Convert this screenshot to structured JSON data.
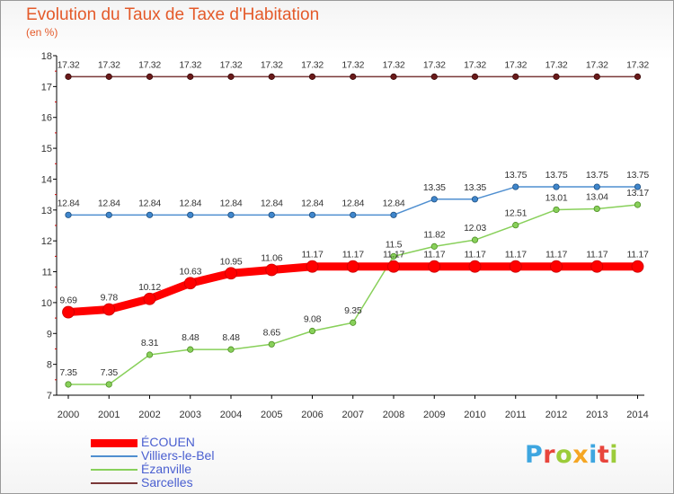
{
  "chart_data": {
    "type": "line",
    "title": "Evolution du Taux de Taxe d'Habitation",
    "ylabel": "(en %)",
    "x": [
      "2000",
      "2001",
      "2002",
      "2003",
      "2004",
      "2005",
      "2006",
      "2007",
      "2008",
      "2009",
      "2010",
      "2011",
      "2012",
      "2013",
      "2014"
    ],
    "ylim": [
      7,
      18
    ],
    "yticks": [
      "7",
      "8",
      "9",
      "10",
      "11",
      "12",
      "13",
      "14",
      "15",
      "16",
      "17",
      "18"
    ],
    "grid": false,
    "legend_position": "bottom-left",
    "series": [
      {
        "name": "Sarcelles",
        "color": "#7a3838",
        "values": [
          17.32,
          17.32,
          17.32,
          17.32,
          17.32,
          17.32,
          17.32,
          17.32,
          17.32,
          17.32,
          17.32,
          17.32,
          17.32,
          17.32,
          17.32
        ],
        "labels": [
          "17.32",
          "17.32",
          "17.32",
          "17.32",
          "17.32",
          "17.32",
          "17.32",
          "17.32",
          "17.32",
          "17.32",
          "17.32",
          "17.32",
          "17.32",
          "17.32",
          "17.32"
        ]
      },
      {
        "name": "Villiers-le-Bel",
        "color": "#4f8fd0",
        "values": [
          12.84,
          12.84,
          12.84,
          12.84,
          12.84,
          12.84,
          12.84,
          12.84,
          12.84,
          13.35,
          13.35,
          13.75,
          13.75,
          13.75,
          13.75
        ],
        "labels": [
          "12.84",
          "12.84",
          "12.84",
          "12.84",
          "12.84",
          "12.84",
          "12.84",
          "12.84",
          "12.84",
          "13.35",
          "13.35",
          "13.75",
          "13.75",
          "13.75",
          "13.75"
        ]
      },
      {
        "name": "Ézanville",
        "color": "#88d05a",
        "values": [
          7.35,
          7.35,
          8.31,
          8.48,
          8.48,
          8.65,
          9.08,
          9.35,
          11.5,
          11.82,
          12.03,
          12.51,
          13.01,
          13.04,
          13.17
        ],
        "labels": [
          "7.35",
          "7.35",
          "8.31",
          "8.48",
          "8.48",
          "8.65",
          "9.08",
          "9.35",
          "11.5",
          "11.82",
          "12.03",
          "12.51",
          "13.01",
          "13.04",
          "13.17"
        ]
      },
      {
        "name": "ÉCOUEN",
        "color": "#ff0000",
        "values": [
          9.69,
          9.78,
          10.12,
          10.63,
          10.95,
          11.06,
          11.17,
          11.17,
          11.17,
          11.17,
          11.17,
          11.17,
          11.17,
          11.17,
          11.17
        ],
        "labels": [
          "9.69",
          "9.78",
          "10.12",
          "10.63",
          "10.95",
          "11.06",
          "11.17",
          "11.17",
          "11.17",
          "11.17",
          "11.17",
          "11.17",
          "11.17",
          "11.17",
          "11.17"
        ]
      }
    ]
  },
  "legend": {
    "items": [
      {
        "label": "ÉCOUEN",
        "color": "#ff0000"
      },
      {
        "label": "Villiers-le-Bel",
        "color": "#4f8fd0"
      },
      {
        "label": "Ézanville",
        "color": "#88d05a"
      },
      {
        "label": "Sarcelles",
        "color": "#7a3838"
      }
    ]
  },
  "logo": {
    "letters": [
      "P",
      "r",
      "o",
      "x",
      "i",
      "t",
      "i"
    ],
    "colors": [
      "#3ea6e0",
      "#e8453c",
      "#9ccc3a",
      "#f5a623",
      "#3ea6e0",
      "#e8453c",
      "#9ccc3a"
    ]
  }
}
